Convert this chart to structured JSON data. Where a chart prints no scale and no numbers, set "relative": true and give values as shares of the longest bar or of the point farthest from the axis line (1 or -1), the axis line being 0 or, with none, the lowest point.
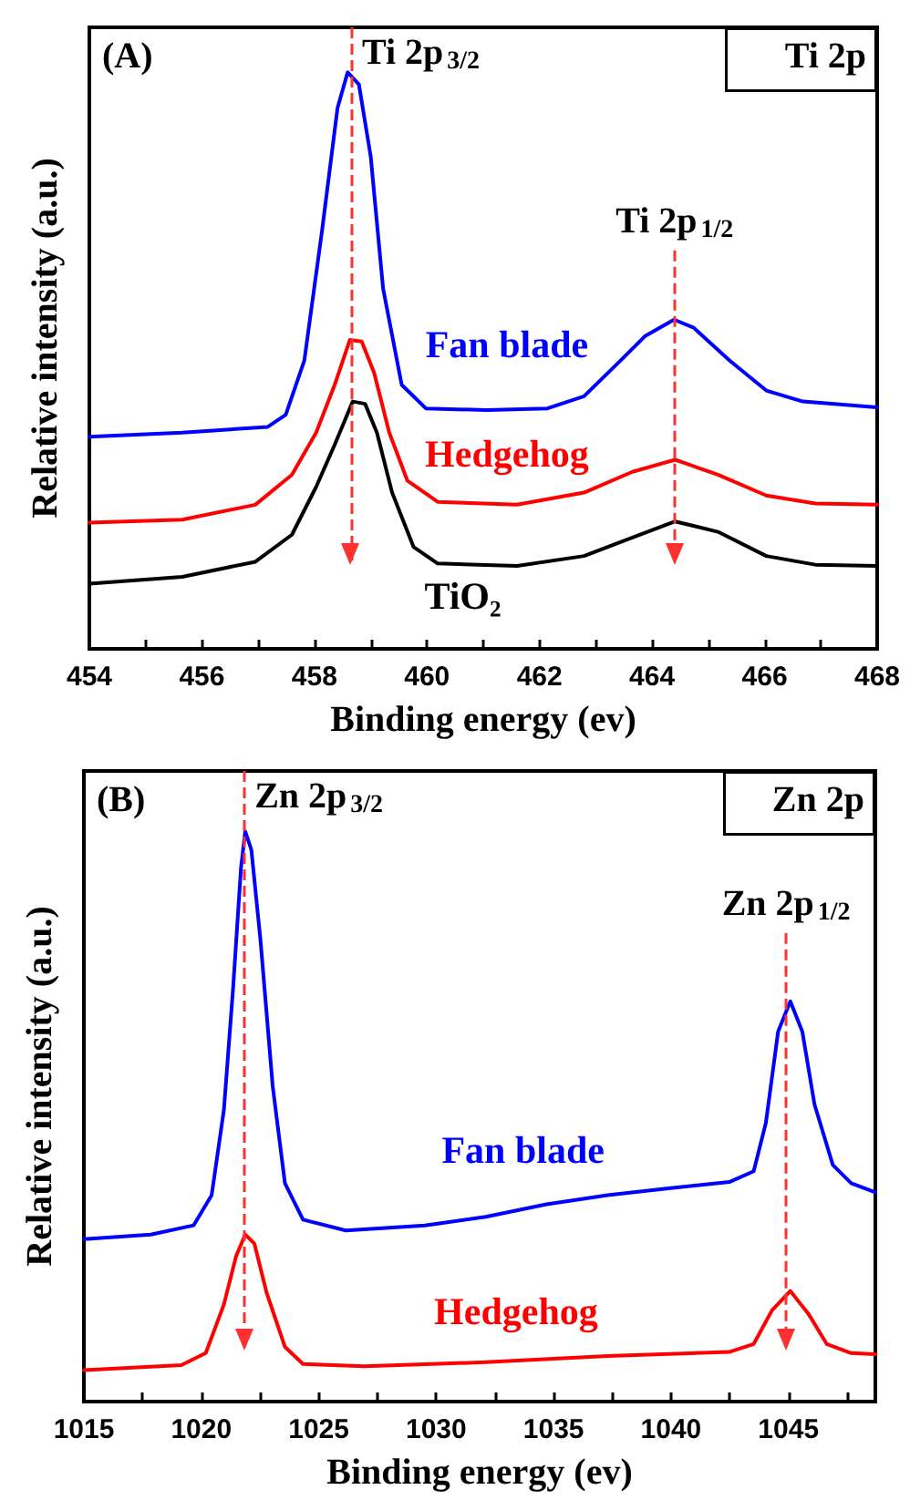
{
  "chart_data": [
    {
      "type": "line",
      "relative": true,
      "xlabel": "Binding energy (ev)",
      "ylabel": "Relative intensity (a.u.)",
      "annotations": [
        "(A)",
        "Ti 2p"
      ],
      "grid": false,
      "legend": false,
      "marker": "none",
      "line_style": "solid",
      "xlim": [
        454,
        468
      ],
      "xticks": [
        454,
        {
          "value": 455,
          "label": null
        },
        456,
        {
          "value": 457,
          "label": null
        },
        458,
        {
          "value": 459,
          "label": null
        },
        460,
        {
          "value": 461,
          "label": null
        },
        462,
        {
          "value": 463,
          "label": null
        },
        464,
        {
          "value": 465,
          "label": null
        },
        466,
        {
          "value": 467,
          "label": null
        },
        468
      ],
      "ref_lines": [
        {
          "axis": "x",
          "value": 458.65,
          "label": "Ti 2p$_{3/2}$",
          "color": "#ff3030",
          "line_style": "dashed"
        },
        {
          "axis": "x",
          "value": 464.4,
          "label": "Ti 2p$_{1/2}$",
          "color": "#ff3030",
          "line_style": "dashed"
        }
      ],
      "series": [
        {
          "name": "Fan blade",
          "color": "#0000ff",
          "x": [
            454.0,
            455.65,
            457.17,
            457.49,
            457.82,
            458.14,
            458.41,
            458.59,
            458.79,
            459.0,
            459.22,
            459.55,
            459.98,
            461.06,
            462.14,
            462.79,
            463.44,
            463.87,
            464.39,
            464.74,
            465.38,
            466.03,
            466.68,
            468.0
          ],
          "values": [
            0.368,
            0.375,
            0.385,
            0.406,
            0.5,
            0.729,
            0.938,
            1.0,
            0.979,
            0.854,
            0.625,
            0.458,
            0.417,
            0.414,
            0.417,
            0.438,
            0.5,
            0.542,
            0.571,
            0.557,
            0.5,
            0.448,
            0.429,
            0.419
          ]
        },
        {
          "name": "Hedgehog",
          "color": "#ff0000",
          "x": [
            454.0,
            455.65,
            456.95,
            457.6,
            458.03,
            458.36,
            458.63,
            458.84,
            459.06,
            459.33,
            459.65,
            460.19,
            461.6,
            462.79,
            463.65,
            464.41,
            465.17,
            466.03,
            466.9,
            468.0
          ],
          "values": [
            0.219,
            0.224,
            0.25,
            0.302,
            0.375,
            0.458,
            0.536,
            0.533,
            0.479,
            0.375,
            0.292,
            0.255,
            0.25,
            0.271,
            0.307,
            0.328,
            0.302,
            0.266,
            0.252,
            0.25
          ]
        },
        {
          "name": "TiO₂",
          "color": "#000000",
          "x": [
            454.0,
            455.65,
            456.95,
            457.6,
            458.03,
            458.36,
            458.68,
            458.9,
            459.11,
            459.38,
            459.76,
            460.19,
            461.6,
            462.79,
            463.65,
            464.41,
            465.17,
            466.03,
            466.9,
            468.0
          ],
          "values": [
            0.113,
            0.125,
            0.151,
            0.198,
            0.281,
            0.354,
            0.429,
            0.425,
            0.375,
            0.271,
            0.177,
            0.148,
            0.144,
            0.161,
            0.193,
            0.221,
            0.203,
            0.161,
            0.146,
            0.144
          ]
        }
      ]
    },
    {
      "type": "line",
      "relative": true,
      "xlabel": "Binding energy (ev)",
      "ylabel": "Relative intensity (a.u.)",
      "annotations": [
        "(B)",
        "Zn 2p"
      ],
      "grid": false,
      "legend": false,
      "marker": "none",
      "line_style": "solid",
      "xlim": [
        1015,
        1048.7
      ],
      "xticks": [
        1015,
        {
          "value": 1017.5,
          "label": null
        },
        1020,
        {
          "value": 1022.5,
          "label": null
        },
        1025,
        {
          "value": 1027.5,
          "label": null
        },
        1030,
        {
          "value": 1032.5,
          "label": null
        },
        1035,
        {
          "value": 1037.5,
          "label": null
        },
        1040,
        {
          "value": 1042.5,
          "label": null
        },
        1045,
        {
          "value": 1047.5,
          "label": null
        }
      ],
      "ref_lines": [
        {
          "axis": "x",
          "value": 1021.8,
          "label": "Zn 2p$_{3/2}$",
          "color": "#ff3030",
          "line_style": "dashed"
        },
        {
          "axis": "x",
          "value": 1044.9,
          "label": "Zn 2p$_{1/2}$",
          "color": "#ff3030",
          "line_style": "dashed"
        }
      ],
      "series": [
        {
          "name": "Fan blade",
          "color": "#0000ff",
          "x": [
            1015.0,
            1017.85,
            1019.67,
            1020.44,
            1020.96,
            1021.35,
            1021.69,
            1021.87,
            1022.13,
            1022.52,
            1023.04,
            1023.56,
            1024.33,
            1026.15,
            1029.52,
            1032.11,
            1034.7,
            1037.3,
            1039.89,
            1042.48,
            1043.52,
            1044.04,
            1044.56,
            1045.08,
            1045.59,
            1046.11,
            1046.89,
            1047.67,
            1048.7
          ],
          "values": [
            0.285,
            0.293,
            0.309,
            0.362,
            0.511,
            0.723,
            0.936,
            1.0,
            0.968,
            0.809,
            0.553,
            0.383,
            0.319,
            0.3,
            0.309,
            0.324,
            0.346,
            0.362,
            0.374,
            0.385,
            0.404,
            0.489,
            0.649,
            0.702,
            0.649,
            0.521,
            0.415,
            0.383,
            0.367
          ]
        },
        {
          "name": "Hedgehog",
          "color": "#ff0000",
          "x": [
            1015.0,
            1019.15,
            1020.19,
            1020.96,
            1021.48,
            1021.87,
            1022.26,
            1022.78,
            1023.56,
            1024.33,
            1026.93,
            1032.11,
            1037.3,
            1042.48,
            1043.52,
            1044.3,
            1045.08,
            1045.85,
            1046.63,
            1047.67,
            1048.7
          ],
          "values": [
            0.055,
            0.064,
            0.085,
            0.17,
            0.255,
            0.293,
            0.277,
            0.191,
            0.096,
            0.066,
            0.062,
            0.069,
            0.08,
            0.087,
            0.101,
            0.16,
            0.194,
            0.154,
            0.101,
            0.085,
            0.083
          ]
        }
      ]
    }
  ]
}
